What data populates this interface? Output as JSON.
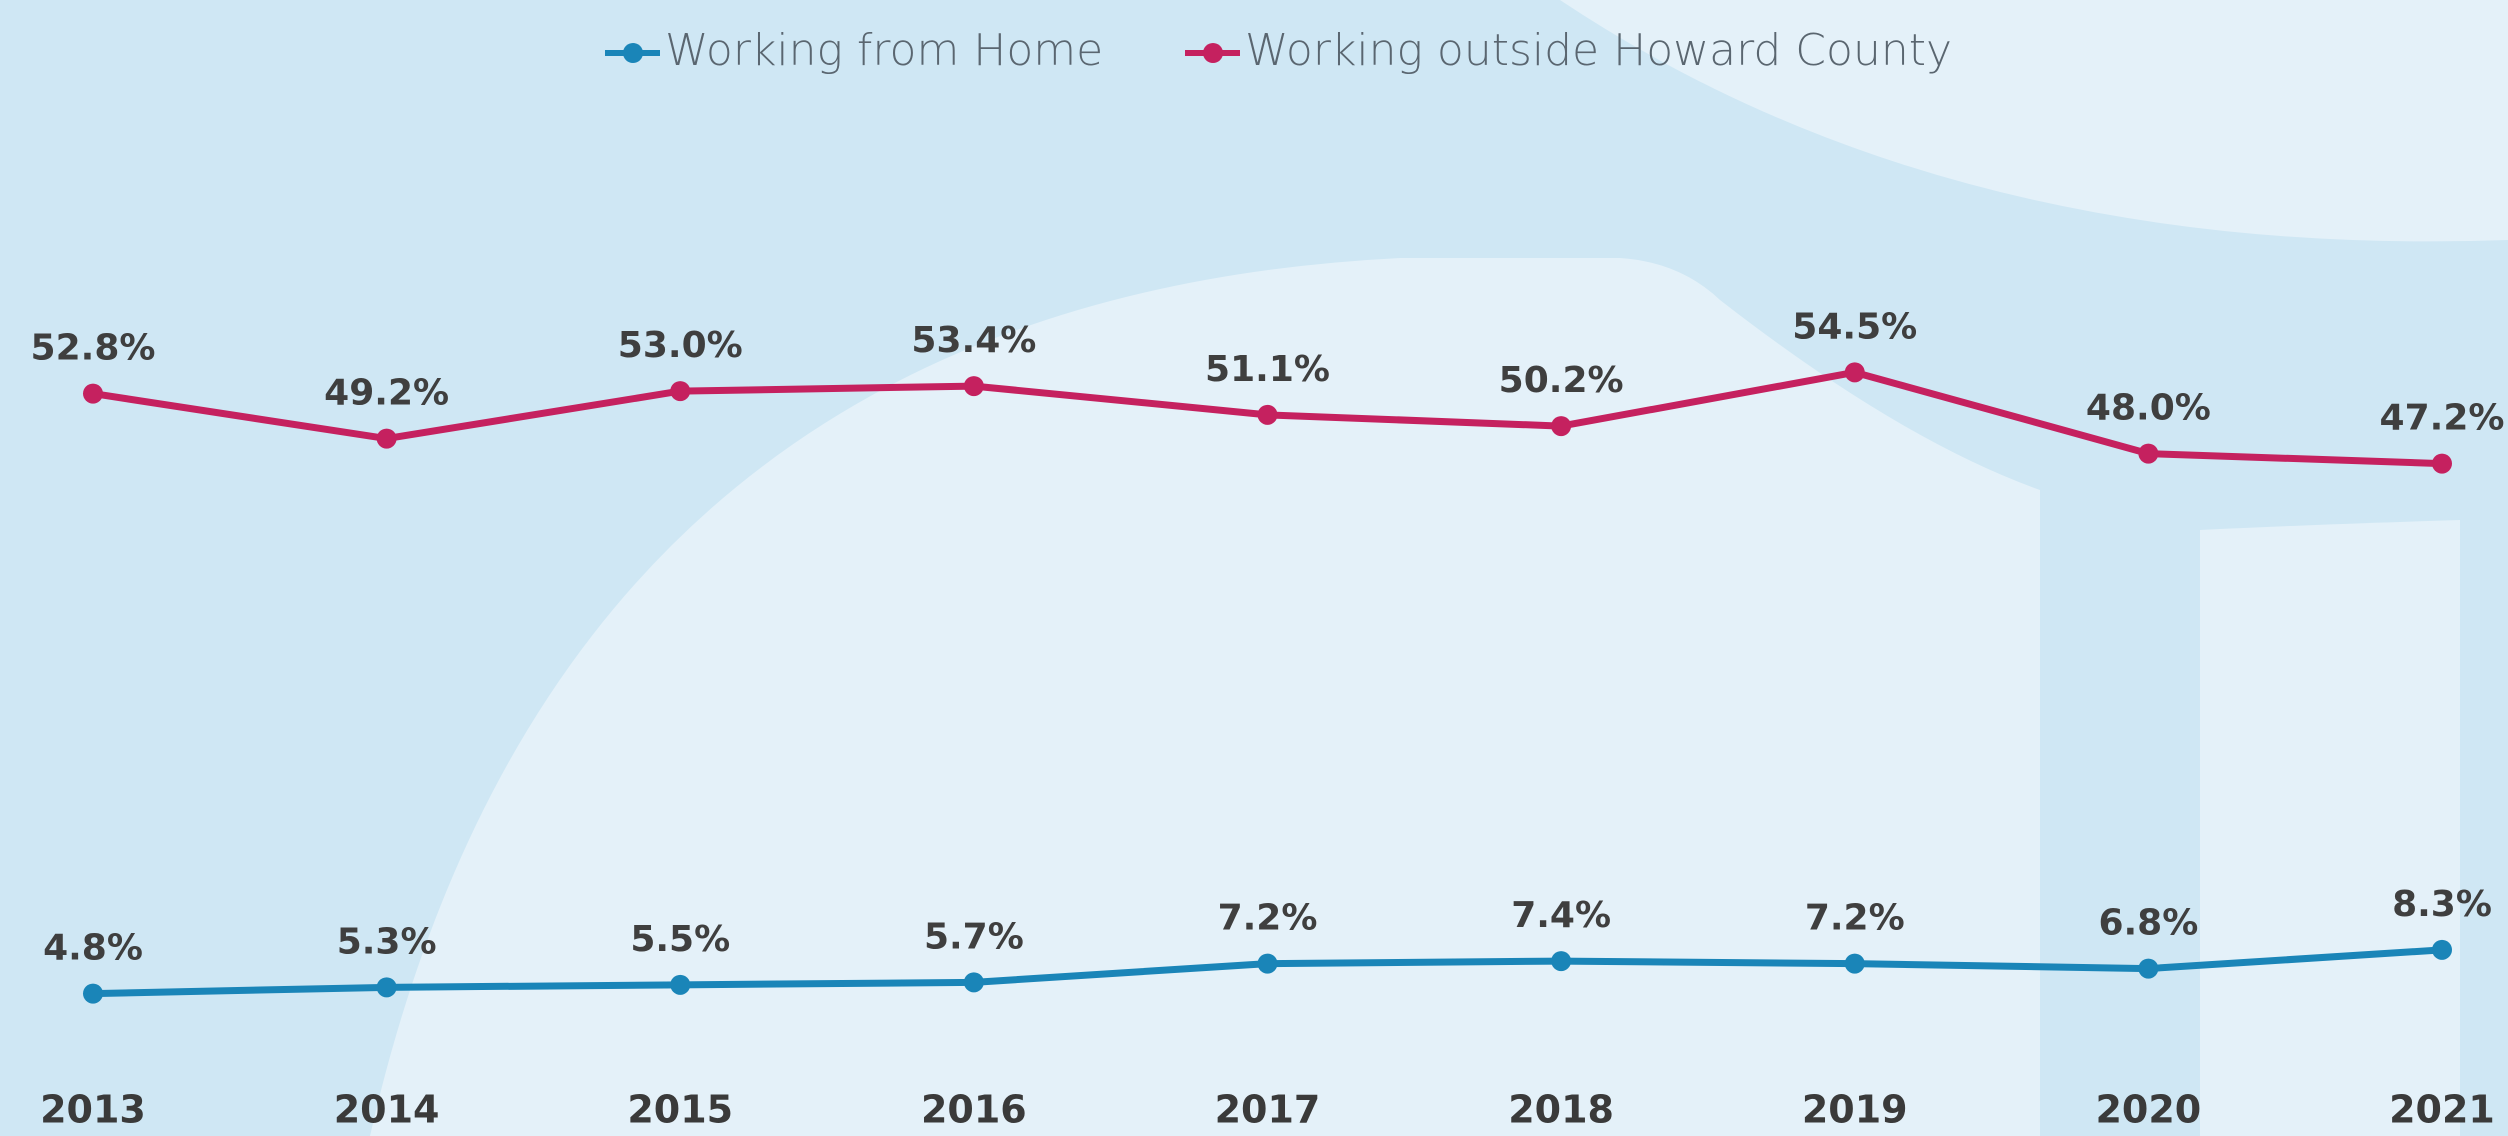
{
  "chart_data": {
    "type": "line",
    "categories": [
      "2013",
      "2014",
      "2015",
      "2016",
      "2017",
      "2018",
      "2019",
      "2020",
      "2021"
    ],
    "series": [
      {
        "name": "Working from Home",
        "color": "#1a85b8",
        "values": [
          4.8,
          5.3,
          5.5,
          5.7,
          7.2,
          7.4,
          7.2,
          6.8,
          8.3
        ],
        "value_labels": [
          "4.8%",
          "5.3%",
          "5.5%",
          "5.7%",
          "7.2%",
          "7.4%",
          "7.2%",
          "6.8%",
          "8.3%"
        ]
      },
      {
        "name": "Working outside Howard County",
        "color": "#c5215f",
        "values": [
          52.8,
          49.2,
          53.0,
          53.4,
          51.1,
          50.2,
          54.5,
          48.0,
          47.2
        ],
        "value_labels": [
          "52.8%",
          "49.2%",
          "53.0%",
          "53.4%",
          "51.1%",
          "50.2%",
          "54.5%",
          "48.0%",
          "47.2%"
        ]
      }
    ]
  }
}
